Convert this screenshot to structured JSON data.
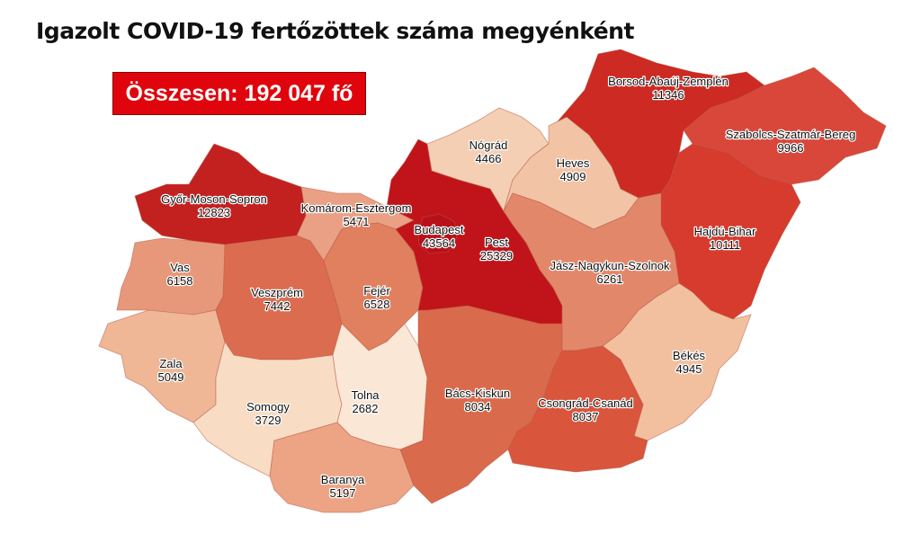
{
  "title": "Igazolt COVID-19 fertőzöttek száma megyénként",
  "total_label": "Összesen: 192 047 fő",
  "counties": [
    {
      "name": "Győr-Moson-Sopron",
      "value": "12823",
      "color": "#c32020"
    },
    {
      "name": "Vas",
      "value": "6158",
      "color": "#e8987a"
    },
    {
      "name": "Zala",
      "value": "5049",
      "color": "#f0b797"
    },
    {
      "name": "Veszprém",
      "value": "7442",
      "color": "#dc6c50"
    },
    {
      "name": "Komárom-Esztergom",
      "value": "5471",
      "color": "#eaa084"
    },
    {
      "name": "Fejér",
      "value": "6528",
      "color": "#e0805f"
    },
    {
      "name": "Somogy",
      "value": "3729",
      "color": "#f8dcc4"
    },
    {
      "name": "Tolna",
      "value": "2682",
      "color": "#fbe7d6"
    },
    {
      "name": "Baranya",
      "value": "5197",
      "color": "#eda484"
    },
    {
      "name": "Bács-Kiskun",
      "value": "8034",
      "color": "#da6a4c"
    },
    {
      "name": "Pest",
      "value": "25329",
      "color": "#c0141a"
    },
    {
      "name": "Budapest",
      "value": "43564",
      "color": "#b8101a"
    },
    {
      "name": "Nógrád",
      "value": "4466",
      "color": "#f5cfb3"
    },
    {
      "name": "Heves",
      "value": "4909",
      "color": "#f3c3a5"
    },
    {
      "name": "Borsod-Abaúj-Zemplén",
      "value": "11346",
      "color": "#cc2a22"
    },
    {
      "name": "Szabolcs-Szatmár-Bereg",
      "value": "9966",
      "color": "#d9473a"
    },
    {
      "name": "Hajdú-Bihar",
      "value": "10111",
      "color": "#d63b2e"
    },
    {
      "name": "Jász-Nagykun-Szolnok",
      "value": "6261",
      "color": "#e3876a"
    },
    {
      "name": "Békés",
      "value": "4945",
      "color": "#f3c09f"
    },
    {
      "name": "Csongrád-Csanád",
      "value": "8037",
      "color": "#d9553c"
    }
  ]
}
